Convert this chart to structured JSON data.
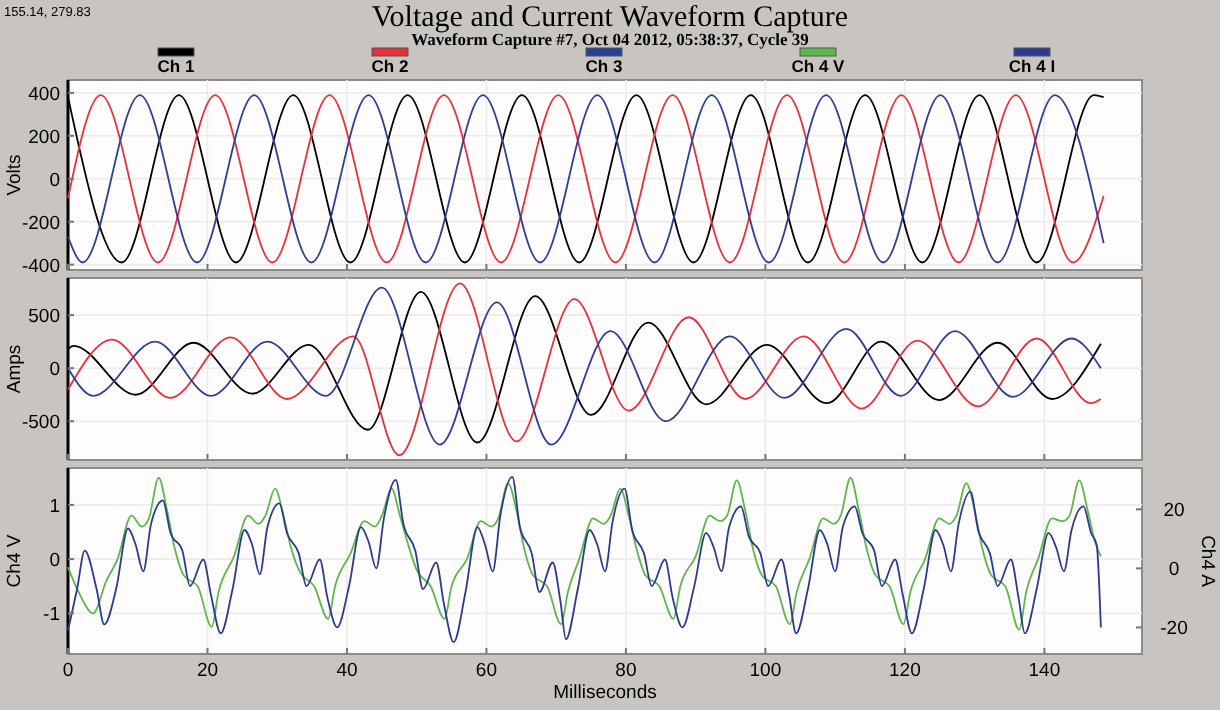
{
  "chart_data": [
    {
      "type": "line",
      "title": "Voltage and Current Waveform Capture",
      "subtitle": "Waveform Capture #7, Oct 04 2012, 05:38:37,  Cycle 39",
      "annotations": [
        "155.14, 279.83"
      ],
      "ylabel": "Volts",
      "xlim": [
        0,
        154
      ],
      "xticks": [
        0,
        20,
        40,
        60,
        80,
        100,
        120,
        140
      ],
      "ylim": [
        -425,
        460
      ],
      "yticks": [
        -400,
        -200,
        0,
        200,
        400
      ],
      "tick_labels": "y",
      "grid": true,
      "legend": "top",
      "series": [
        {
          "name": "Ch 1",
          "color": "#000000",
          "x": [
            0,
            7.7,
            15.9,
            24.1,
            32.3,
            40.5,
            48.7,
            56.9,
            65.1,
            73.3,
            81.5,
            89.7,
            97.9,
            106.1,
            114.3,
            122.5,
            130.7,
            138.9,
            147.1,
            148.5
          ],
          "values": [
            380,
            -390,
            390,
            -390,
            390,
            -390,
            390,
            -390,
            390,
            -390,
            390,
            -390,
            390,
            -390,
            390,
            -390,
            390,
            -390,
            390,
            380
          ]
        },
        {
          "name": "Ch 2",
          "color": "#e8303a",
          "x": [
            0,
            4.7,
            12.9,
            21.1,
            29.3,
            37.5,
            45.7,
            53.9,
            62.1,
            70.3,
            78.5,
            86.7,
            94.9,
            103.1,
            111.3,
            119.5,
            127.7,
            135.9,
            144.1,
            148.5
          ],
          "values": [
            -90,
            390,
            -390,
            390,
            -390,
            390,
            -390,
            390,
            -390,
            390,
            -390,
            390,
            -390,
            390,
            -390,
            390,
            -390,
            390,
            -390,
            -80
          ]
        },
        {
          "name": "Ch 3",
          "color": "#2a3f9a",
          "x": [
            0,
            2.1,
            10.3,
            18.5,
            26.7,
            34.9,
            43.1,
            51.3,
            59.5,
            67.7,
            75.9,
            84.1,
            92.3,
            100.5,
            108.7,
            116.9,
            125.1,
            133.3,
            141.5,
            148.5
          ],
          "values": [
            -270,
            -390,
            390,
            -390,
            390,
            -390,
            390,
            -390,
            390,
            -390,
            390,
            -390,
            390,
            -390,
            390,
            -390,
            390,
            -390,
            390,
            -300
          ]
        }
      ]
    },
    {
      "type": "line",
      "ylabel": "Amps",
      "xlim": [
        0,
        154
      ],
      "xticks": [
        0,
        20,
        40,
        60,
        80,
        100,
        120,
        140
      ],
      "ylim": [
        -865,
        850
      ],
      "yticks": [
        -500,
        0,
        500
      ],
      "tick_labels": "y",
      "grid": true,
      "series": [
        {
          "color": "#000000",
          "x": [
            0,
            0.8,
            9.7,
            18,
            26.4,
            34.5,
            43,
            50.6,
            58.7,
            67,
            75,
            83.2,
            91.5,
            100.2,
            108.8,
            116.6,
            124.9,
            133.3,
            141.1,
            148.1
          ],
          "values": [
            180,
            210,
            -250,
            240,
            -240,
            220,
            -580,
            720,
            -700,
            680,
            -440,
            430,
            -340,
            220,
            -330,
            250,
            -300,
            240,
            -290,
            230
          ]
        },
        {
          "color": "#e8303a",
          "x": [
            0,
            6.3,
            14.7,
            23.3,
            31.4,
            40.9,
            47.5,
            56.2,
            64.3,
            72.6,
            80.4,
            89,
            97.1,
            105.5,
            113.8,
            121.8,
            130.5,
            138.9,
            146.7,
            148.1
          ],
          "values": [
            -200,
            270,
            -280,
            290,
            -290,
            300,
            -820,
            800,
            -690,
            650,
            -400,
            480,
            -290,
            300,
            -380,
            260,
            -360,
            280,
            -330,
            -290
          ]
        },
        {
          "color": "#2a3f9a",
          "x": [
            0,
            3.6,
            12.5,
            20.5,
            28.6,
            37,
            45,
            53.3,
            61.5,
            69.3,
            77.8,
            85.7,
            94.9,
            102.7,
            111.6,
            119.4,
            127.2,
            135.5,
            143.9,
            148.1
          ],
          "values": [
            0,
            -260,
            250,
            -260,
            250,
            -260,
            760,
            -720,
            620,
            -720,
            350,
            -500,
            300,
            -280,
            370,
            -260,
            350,
            -270,
            280,
            0
          ]
        }
      ]
    },
    {
      "type": "line",
      "xlabel": "Milliseconds",
      "ylabel": "Ch4 V",
      "y2label": "Ch4 A",
      "xlim": [
        0,
        154
      ],
      "xticks": [
        0,
        20,
        40,
        60,
        80,
        100,
        120,
        140
      ],
      "ylim": [
        -1.75,
        1.68
      ],
      "yticks": [
        -1,
        0,
        1
      ],
      "y2lim": [
        -29,
        34
      ],
      "y2ticks": [
        -20,
        0,
        20
      ],
      "grid": true,
      "legend": "top",
      "series": [
        {
          "name": "Ch 4 V",
          "color": "#5cb84a",
          "x": [
            0,
            1.5,
            3.6,
            5.5,
            7.1,
            9.1,
            10.6,
            11.6,
            13,
            14.2,
            15.3,
            16.6,
            18.6,
            20.6,
            21.6,
            23.8,
            25.8,
            27.3,
            28.3,
            29.7,
            30.9,
            32,
            33.3,
            35.3,
            37.3,
            38.3,
            40.5,
            42.5,
            44,
            45,
            46.4,
            47.6,
            48.7,
            50,
            52,
            54,
            55,
            57.2,
            59.2,
            60.7,
            61.7,
            63.1,
            64.3,
            65.4,
            66.7,
            68.7,
            70.7,
            71.7,
            73.3,
            75.3,
            76.8,
            77.8,
            79.2,
            80.4,
            81.5,
            82.8,
            84.8,
            86.8,
            87.8,
            90,
            92,
            93.5,
            94.5,
            95.9,
            97.1,
            98.2,
            99.5,
            101.5,
            103.5,
            104.5,
            106.3,
            108.3,
            109.8,
            110.8,
            112.2,
            113.4,
            114.5,
            115.8,
            117.8,
            119.8,
            120.8,
            122.9,
            124.9,
            126.4,
            127.4,
            128.8,
            130,
            131.1,
            132.4,
            134.4,
            136.4,
            137.4,
            139.1,
            141.1,
            142.6,
            143.6,
            145,
            146.2,
            147.3,
            148.1
          ],
          "values": [
            -0.15,
            -0.6,
            -1,
            -0.4,
            0,
            0.8,
            0.6,
            0.75,
            1.5,
            0.9,
            0.2,
            -0.3,
            -0.5,
            -1.25,
            -0.6,
            0.05,
            0.8,
            0.65,
            0.8,
            1.3,
            0.8,
            0.2,
            -0.25,
            -0.5,
            -1.1,
            -0.5,
            0.1,
            0.7,
            0.6,
            0.8,
            1.3,
            0.8,
            0.3,
            -0.2,
            -0.5,
            -1.1,
            -0.5,
            0,
            0.7,
            0.6,
            0.75,
            1.4,
            0.9,
            0.2,
            -0.3,
            -0.5,
            -1.2,
            -0.6,
            0,
            0.75,
            0.65,
            0.8,
            1.3,
            0.8,
            0.2,
            -0.3,
            -0.5,
            -1.1,
            -0.5,
            0.05,
            0.8,
            0.7,
            0.8,
            1.45,
            0.9,
            0.2,
            -0.3,
            -0.5,
            -1.2,
            -0.6,
            0,
            0.75,
            0.65,
            0.8,
            1.5,
            0.9,
            0.2,
            -0.3,
            -0.5,
            -1.2,
            -0.6,
            0,
            0.75,
            0.65,
            0.8,
            1.4,
            0.9,
            0.2,
            -0.3,
            -0.5,
            -1.3,
            -0.6,
            0,
            0.75,
            0.7,
            0.8,
            1.45,
            0.9,
            0.3,
            0.05
          ]
        },
        {
          "name": "Ch 4 I",
          "color": "#2a3a90",
          "axis": "y2",
          "x": [
            0,
            1.3,
            2.4,
            4.1,
            5.2,
            6.9,
            8.6,
            9.7,
            10.8,
            11.9,
            13.6,
            14.7,
            16.4,
            17.5,
            19.4,
            20.5,
            21.9,
            23.6,
            25.3,
            26.4,
            27.5,
            28.6,
            30.3,
            31.4,
            33.1,
            34.2,
            36.1,
            37.2,
            38.6,
            40.3,
            42,
            43.1,
            44.2,
            45.3,
            47,
            48.1,
            49.8,
            50.9,
            52.8,
            53.9,
            55.3,
            57,
            58.7,
            59.8,
            60.9,
            62,
            63.7,
            64.8,
            66.5,
            67.6,
            69.5,
            70.6,
            71.4,
            73.1,
            74.8,
            75.9,
            77,
            78.1,
            79.8,
            80.9,
            82.6,
            83.7,
            85.6,
            86.7,
            88.1,
            89.8,
            91.5,
            92.6,
            93.7,
            94.8,
            96.5,
            97.6,
            99.3,
            100.4,
            102.3,
            103.4,
            104.4,
            106.1,
            107.8,
            108.9,
            110,
            111.1,
            112.8,
            113.9,
            115.6,
            116.7,
            118.6,
            119.7,
            121,
            122.7,
            124.4,
            125.5,
            126.6,
            127.7,
            129.4,
            130.5,
            132.2,
            133.3,
            135.2,
            136.3,
            137.2,
            138.9,
            140.6,
            141.7,
            142.8,
            143.9,
            145.6,
            146.7,
            147.5,
            148.1
          ],
          "values": [
            -21,
            -7,
            6,
            -7,
            -19,
            -7,
            13.5,
            8,
            -1,
            15,
            23,
            12,
            6,
            -6,
            3,
            -9,
            -22,
            -7,
            13,
            8,
            -2,
            14,
            22,
            12,
            5,
            -6,
            3,
            -10,
            -20,
            -6,
            14,
            9,
            0,
            17,
            30,
            15,
            6,
            -7,
            2,
            -12,
            -25,
            -8,
            14,
            8,
            -1,
            18,
            31,
            14,
            5,
            -8,
            2,
            -11,
            -24,
            -7,
            13,
            8,
            -1,
            16,
            27,
            13,
            5,
            -6,
            3,
            -10,
            -20,
            -6,
            12,
            7,
            -1,
            14,
            21,
            11,
            5,
            -6,
            3,
            -9,
            -22,
            -7,
            13,
            8,
            -1,
            14,
            21,
            12,
            6,
            -6,
            3,
            -9,
            -22,
            -7,
            13,
            8,
            -1,
            15,
            26,
            13,
            5,
            -6,
            3,
            -10,
            -22,
            -7,
            12,
            7,
            -1,
            13,
            21,
            12,
            8,
            -20
          ]
        }
      ]
    }
  ]
}
